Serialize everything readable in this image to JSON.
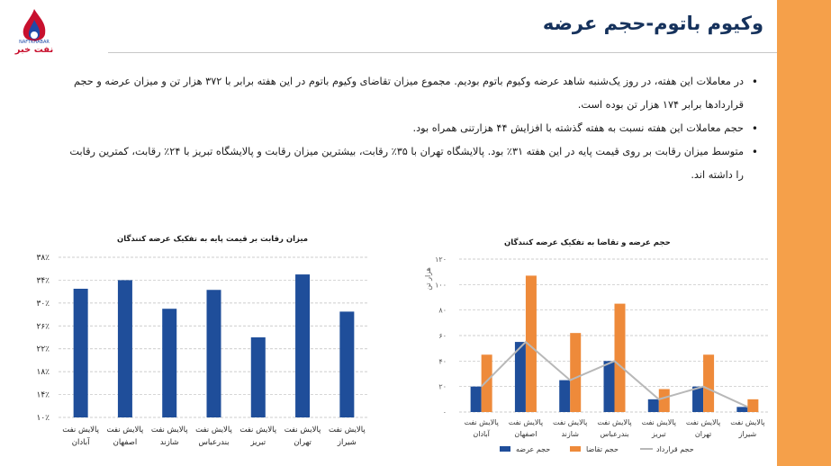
{
  "slide": {
    "title": "وکیوم باتوم-حجم عرضه",
    "logo_text": "نفت خبر",
    "logo_sub": "NAFTKHABAR",
    "accent_color": "#f5a04a",
    "title_color": "#16325c"
  },
  "bullets": [
    {
      "text": "در معاملات این هفته، در روز یک‌شنبه شاهد عرضه وکیوم باتوم بودیم. مجموع میزان تقاضای وکیوم باتوم در این هفته برابر با ۳۷۲ هزار تن و میزان عرضه و حجم قراردادها برابر ۱۷۴ هزار تن بوده است."
    },
    {
      "text": "حجم معاملات این هفته نسبت به هفته گذشته با افزایش ۴۴ هزارتنی همراه بود."
    },
    {
      "text": "متوسط میزان رقابت بر روی قیمت پایه در این هفته ۳۱٪ بود. پالایشگاه تهران با ۳۵٪ رقابت، بیشترین میزان رقابت و پالایشگاه تبریز با ۲۴٪ رقابت، کمترین رقابت را داشته اند."
    }
  ],
  "chart_data": [
    {
      "type": "bar",
      "title": "میزان رقابت بر قیمت پایه به تفکیک عرضه کنندگان",
      "categories": [
        [
          "پالایش نفت",
          "آبادان"
        ],
        [
          "پالایش نفت",
          "اصفهان"
        ],
        [
          "پالایش نفت",
          "شازند"
        ],
        [
          "پالایش نفت",
          "بندرعباس"
        ],
        [
          "پالایش نفت",
          "تبریز"
        ],
        [
          "پالایش نفت",
          "تهران"
        ],
        [
          "پالایش نفت",
          "شیراز"
        ]
      ],
      "values": [
        32.5,
        34,
        29,
        32.3,
        24,
        35,
        28.5
      ],
      "ylim": [
        10,
        38
      ],
      "yticks": [
        "۱۰٪",
        "۱۴٪",
        "۱۸٪",
        "۲۲٪",
        "۲۶٪",
        "۳۰٪",
        "۳۴٪",
        "۳۸٪"
      ],
      "ytick_values": [
        10,
        14,
        18,
        22,
        26,
        30,
        34,
        38
      ],
      "color": "#1f4e9a",
      "xlabel": "",
      "ylabel": ""
    },
    {
      "type": "bar",
      "title": "حجم عرضه و تقاضا به تفکیک عرضه کنندگان",
      "ylabel": "هزار تن",
      "categories": [
        [
          "پالایش نفت",
          "آبادان"
        ],
        [
          "پالایش نفت",
          "اصفهان"
        ],
        [
          "پالایش نفت",
          "شازند"
        ],
        [
          "پالایش نفت",
          "بندرعباس"
        ],
        [
          "پالایش نفت",
          "تبریز"
        ],
        [
          "پالایش نفت",
          "تهران"
        ],
        [
          "پالایش نفت",
          "شیراز"
        ]
      ],
      "ylim": [
        0,
        120
      ],
      "yticks": [
        "۰",
        "۲۰",
        "۴۰",
        "۶۰",
        "۸۰",
        "۱۰۰",
        "۱۲۰"
      ],
      "ytick_values": [
        0,
        20,
        40,
        60,
        80,
        100,
        120
      ],
      "series": [
        {
          "name": "حجم عرضه",
          "type": "bar",
          "color": "#1f4e9a",
          "values": [
            20,
            55,
            25,
            40,
            10,
            20,
            4
          ]
        },
        {
          "name": "حجم تقاضا",
          "type": "bar",
          "color": "#ee8a3a",
          "values": [
            45,
            107,
            62,
            85,
            18,
            45,
            10
          ]
        },
        {
          "name": "حجم قرارداد",
          "type": "line",
          "color": "#b8b8b8",
          "values": [
            20,
            55,
            25,
            40,
            10,
            20,
            4
          ]
        }
      ]
    }
  ]
}
